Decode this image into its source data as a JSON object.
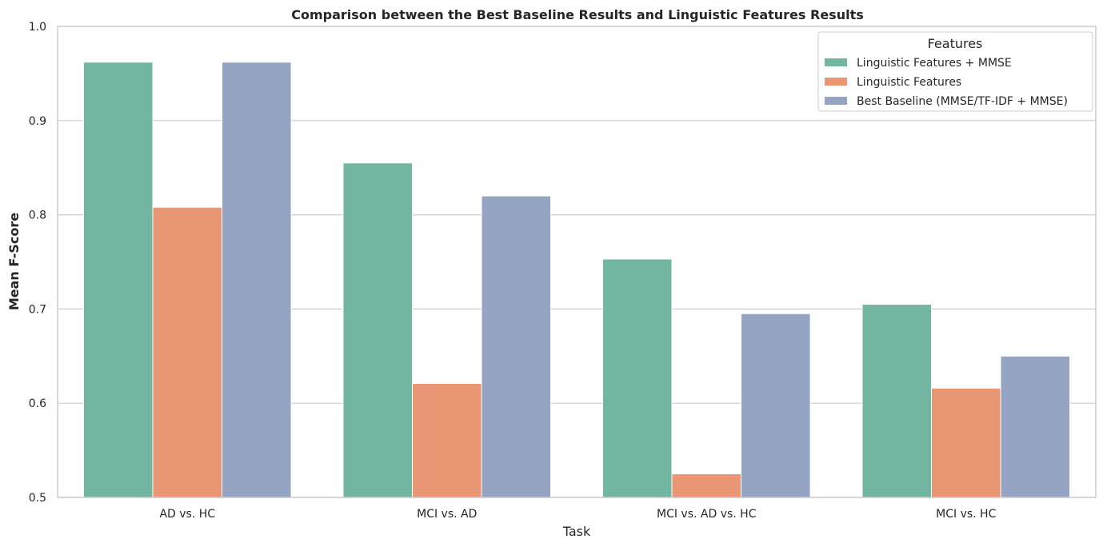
{
  "chart_data": {
    "type": "bar",
    "title": "Comparison between the Best Baseline Results and Linguistic Features Results",
    "xlabel": "Task",
    "ylabel": "Mean F-Score",
    "ylim": [
      0.5,
      1.0
    ],
    "yticks": [
      "0.5",
      "0.6",
      "0.7",
      "0.8",
      "0.9",
      "1.0"
    ],
    "grid": "horizontal",
    "legend_position": "top-right",
    "legend_title": "Features",
    "categories": [
      "AD vs. HC",
      "MCI vs. AD",
      "MCI vs. AD vs. HC",
      "MCI vs. HC"
    ],
    "series": [
      {
        "name": "Linguistic Features + MMSE",
        "color": "#72b5a0",
        "values": [
          0.962,
          0.855,
          0.753,
          0.705
        ]
      },
      {
        "name": "Linguistic Features",
        "color": "#e89674",
        "values": [
          0.808,
          0.621,
          0.525,
          0.616
        ]
      },
      {
        "name": "Best Baseline (MMSE/TF-IDF + MMSE)",
        "color": "#94a4c2",
        "values": [
          0.962,
          0.82,
          0.695,
          0.65
        ]
      }
    ]
  }
}
